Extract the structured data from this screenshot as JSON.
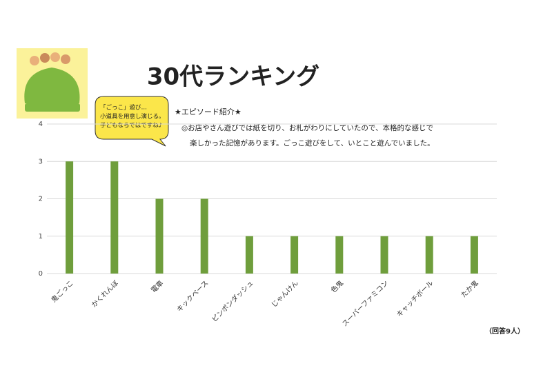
{
  "chart_data": {
    "type": "bar",
    "title": "30代ランキング",
    "callout": [
      "「ごっこ」遊び…",
      "小道具を用意し演じる。",
      "子どもならではですね♪"
    ],
    "episode": {
      "heading": "★エピソード紹介★",
      "lines": [
        "◎お店やさん遊びでは紙を切り、お札がわりにしていたので、本格的な感じで",
        "楽しかった記憶があります。ごっこ遊びをして、いとこと遊んでいました。"
      ]
    },
    "note": "（回答9人）",
    "categories": [
      "鬼ごっこ",
      "かくれんぼ",
      "電車",
      "キックベース",
      "ピンポンダッシュ",
      "じゃんけん",
      "色鬼",
      "スーパーファミコン",
      "キャッチボール",
      "たか鬼"
    ],
    "values": [
      3,
      3,
      2,
      2,
      1,
      1,
      1,
      1,
      1,
      1
    ],
    "color": "#6f9e3c",
    "ylim": [
      0,
      4
    ],
    "yticks": [
      0,
      1,
      2,
      3,
      4
    ],
    "grid": true
  }
}
